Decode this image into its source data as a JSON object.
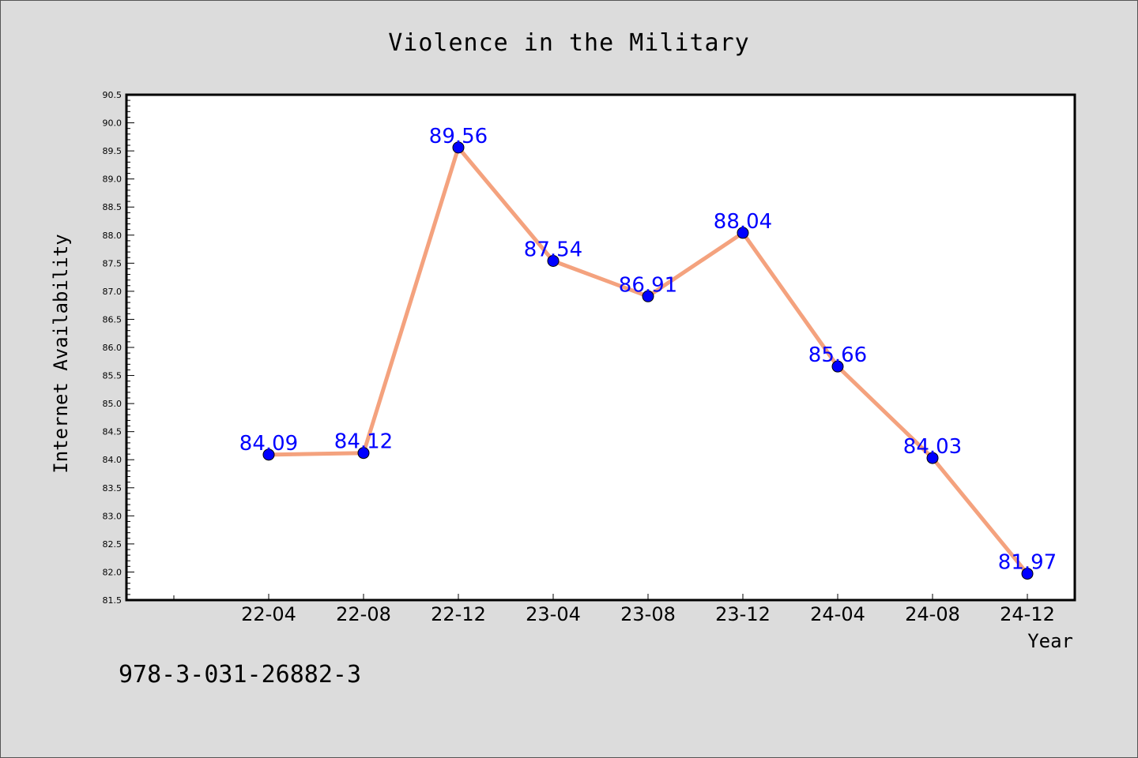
{
  "footer_text": "978-3-031-26882-3",
  "chart_data": {
    "type": "line",
    "title": "Violence in the Military",
    "xlabel": "Year",
    "ylabel": "Internet Availability",
    "categories": [
      "22-04",
      "22-08",
      "22-12",
      "23-04",
      "23-08",
      "23-12",
      "24-04",
      "24-08",
      "24-12"
    ],
    "series": [
      {
        "values": [
          84.09,
          84.12,
          89.56,
          87.54,
          86.91,
          88.04,
          85.66,
          84.03,
          81.97
        ]
      }
    ],
    "data_labels": [
      "84.09",
      "84.12",
      "89.56",
      "87.54",
      "86.91",
      "88.04",
      "85.66",
      "84.03",
      "81.97"
    ],
    "ylim": [
      81.5,
      90.5
    ],
    "ytick_labels": [
      "81.5",
      "82.0",
      "82.5",
      "83.0",
      "83.5",
      "84.0",
      "84.5",
      "85.0",
      "85.5",
      "86.0",
      "86.5",
      "87.0",
      "87.5",
      "88.0",
      "88.5",
      "89.0",
      "89.5",
      "90.0",
      "90.5"
    ],
    "grid": false,
    "colors": {
      "line": "#f4a27e",
      "marker": "#0000ff",
      "label": "#0000ff",
      "plot_bg": "#ffffff",
      "page_bg": "#dcdcdc"
    }
  }
}
